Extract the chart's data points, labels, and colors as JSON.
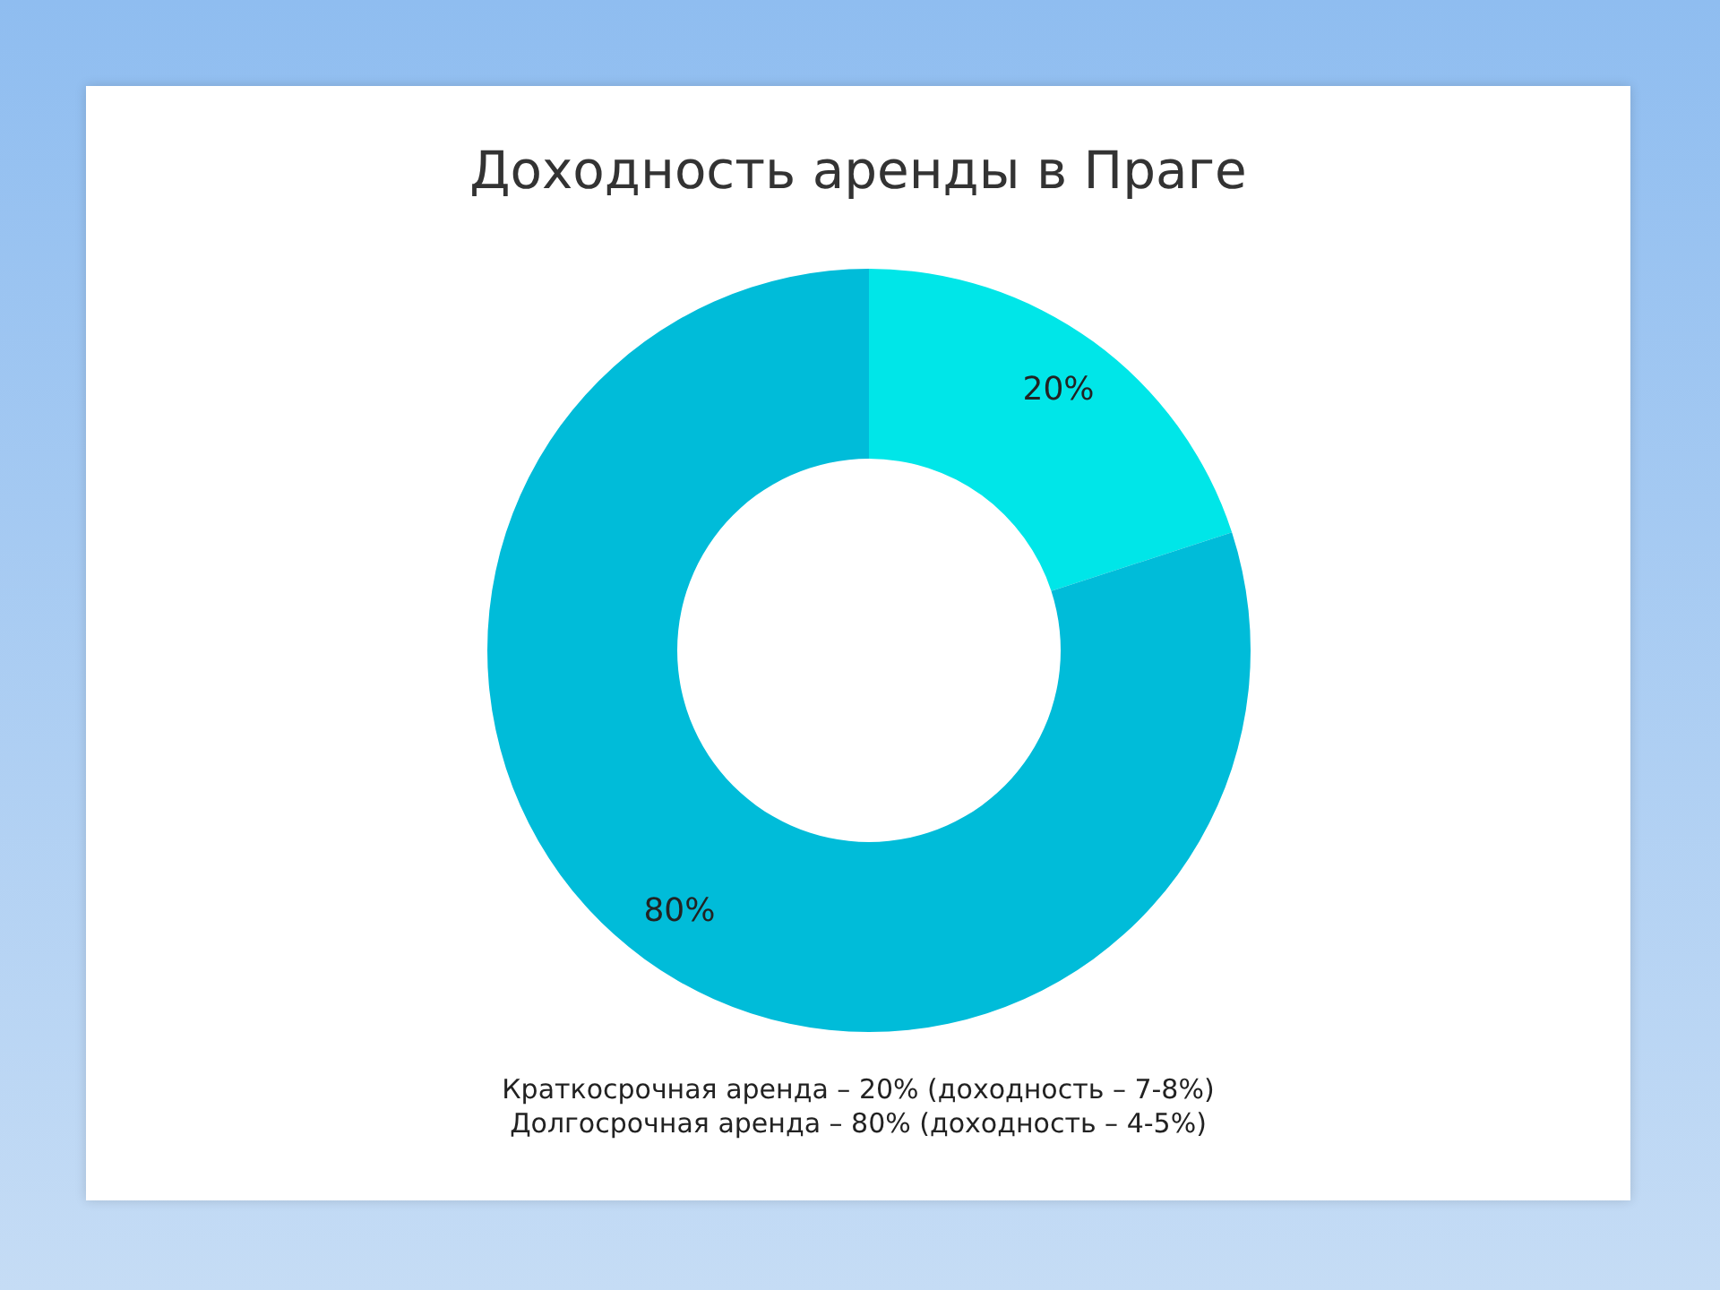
{
  "chart_data": {
    "type": "donut",
    "title": "Доходность аренды в Праге",
    "categories": [
      null,
      null
    ],
    "values": [
      20,
      80
    ],
    "colors": [
      "#00e6e8",
      "#00bcd9"
    ],
    "value_labels": [
      "20%",
      "80%"
    ],
    "annotations": [
      "Краткосрочная аренда – 20% (доходность – 7-8%)",
      "Долгосрочная аренда – 80% (доходность – 4-5%)"
    ]
  }
}
